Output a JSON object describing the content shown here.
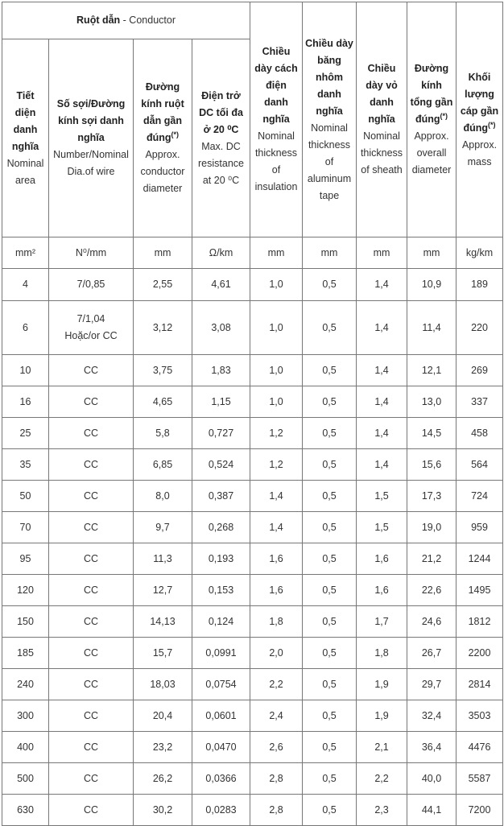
{
  "header": {
    "group": {
      "bold": "Ruột dẫn",
      "normal": " - Conductor"
    },
    "columns": [
      {
        "bold": "Tiết diện danh nghĩa",
        "sup": "",
        "normal": "Nominal area"
      },
      {
        "bold": "Số sợi/Đường kính sợi danh nghĩa",
        "sup": "",
        "normal": "Number/Nominal Dia.of wire"
      },
      {
        "bold": "Đường kính ruột dẫn gần đúng",
        "sup": "(*)",
        "normal": "Approx. conductor diameter"
      },
      {
        "bold": "Điện trở DC tối đa ở 20 ⁰C",
        "sup": "",
        "normal": "Max. DC resistance at 20 ⁰C"
      },
      {
        "bold": "Chiều dày cách điện danh nghĩa",
        "sup": "",
        "normal": "Nominal thickness of insulation"
      },
      {
        "bold": "Chiều dày băng nhôm danh nghĩa",
        "sup": "",
        "normal": "Nominal thickness of aluminum tape"
      },
      {
        "bold": "Chiều dày vỏ danh nghĩa",
        "sup": "",
        "normal": "Nominal thickness of sheath"
      },
      {
        "bold": "Đường kính tổng gần đúng",
        "sup": "(*)",
        "normal": "Approx. overall diameter"
      },
      {
        "bold": "Khối lượng cáp gần đúng",
        "sup": "(*)",
        "normal": "Approx. mass"
      }
    ],
    "units": [
      "mm²",
      "N⁰/mm",
      "mm",
      "Ω/km",
      "mm",
      "mm",
      "mm",
      "mm",
      "kg/km"
    ]
  },
  "rows": [
    [
      "4",
      "7/0,85",
      "2,55",
      "4,61",
      "1,0",
      "0,5",
      "1,4",
      "10,9",
      "189"
    ],
    [
      "6",
      "7/1,04\nHoặc/or CC",
      "3,12",
      "3,08",
      "1,0",
      "0,5",
      "1,4",
      "11,4",
      "220"
    ],
    [
      "10",
      "CC",
      "3,75",
      "1,83",
      "1,0",
      "0,5",
      "1,4",
      "12,1",
      "269"
    ],
    [
      "16",
      "CC",
      "4,65",
      "1,15",
      "1,0",
      "0,5",
      "1,4",
      "13,0",
      "337"
    ],
    [
      "25",
      "CC",
      "5,8",
      "0,727",
      "1,2",
      "0,5",
      "1,4",
      "14,5",
      "458"
    ],
    [
      "35",
      "CC",
      "6,85",
      "0,524",
      "1,2",
      "0,5",
      "1,4",
      "15,6",
      "564"
    ],
    [
      "50",
      "CC",
      "8,0",
      "0,387",
      "1,4",
      "0,5",
      "1,5",
      "17,3",
      "724"
    ],
    [
      "70",
      "CC",
      "9,7",
      "0,268",
      "1,4",
      "0,5",
      "1,5",
      "19,0",
      "959"
    ],
    [
      "95",
      "CC",
      "11,3",
      "0,193",
      "1,6",
      "0,5",
      "1,6",
      "21,2",
      "1244"
    ],
    [
      "120",
      "CC",
      "12,7",
      "0,153",
      "1,6",
      "0,5",
      "1,6",
      "22,6",
      "1495"
    ],
    [
      "150",
      "CC",
      "14,13",
      "0,124",
      "1,8",
      "0,5",
      "1,7",
      "24,6",
      "1812"
    ],
    [
      "185",
      "CC",
      "15,7",
      "0,0991",
      "2,0",
      "0,5",
      "1,8",
      "26,7",
      "2200"
    ],
    [
      "240",
      "CC",
      "18,03",
      "0,0754",
      "2,2",
      "0,5",
      "1,9",
      "29,7",
      "2814"
    ],
    [
      "300",
      "CC",
      "20,4",
      "0,0601",
      "2,4",
      "0,5",
      "1,9",
      "32,4",
      "3503"
    ],
    [
      "400",
      "CC",
      "23,2",
      "0,0470",
      "2,6",
      "0,5",
      "2,1",
      "36,4",
      "4476"
    ],
    [
      "500",
      "CC",
      "26,2",
      "0,0366",
      "2,8",
      "0,5",
      "2,2",
      "40,0",
      "5587"
    ],
    [
      "630",
      "CC",
      "30,2",
      "0,0283",
      "2,8",
      "0,5",
      "2,3",
      "44,1",
      "7200"
    ]
  ]
}
